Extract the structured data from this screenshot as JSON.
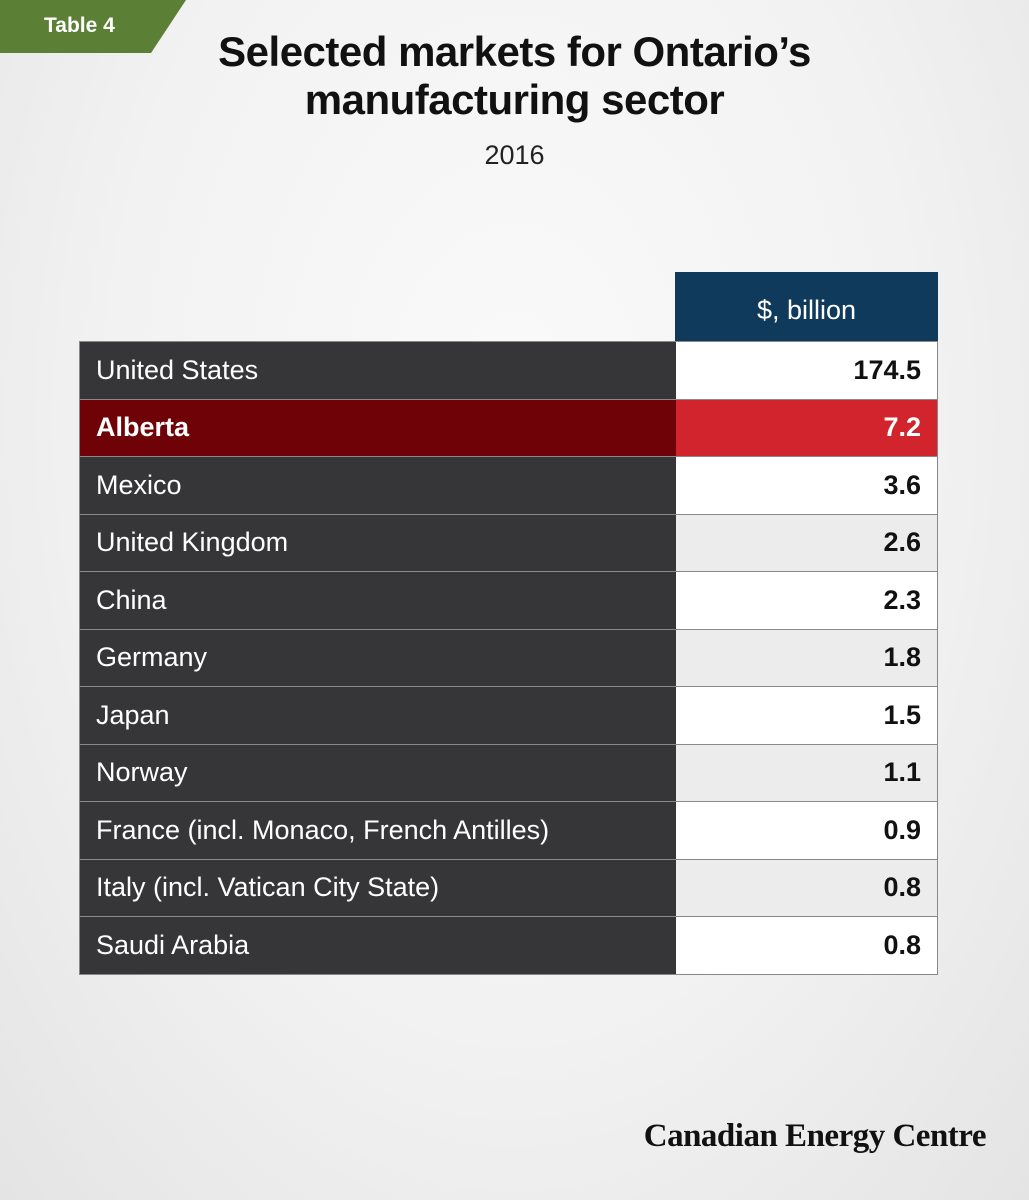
{
  "tag": "Table 4",
  "title_line1": "Selected markets for Ontario’s",
  "title_line2": "manufacturing sector",
  "subtitle": "2016",
  "brand": "Canadian Energy Centre",
  "colors": {
    "tag": "#5c7f36",
    "header": "#0f3a5c",
    "name_cell": "#363638",
    "highlight_name": "#6e0206",
    "highlight_value": "#d1242c"
  },
  "chart_data": {
    "type": "table",
    "title": "Selected markets for Ontario’s manufacturing sector",
    "subtitle": "2016",
    "column_header": "$, billion",
    "highlight": "Alberta",
    "rows": [
      {
        "name": "United States",
        "value": "174.5"
      },
      {
        "name": "Alberta",
        "value": "7.2"
      },
      {
        "name": "Mexico",
        "value": "3.6"
      },
      {
        "name": "United Kingdom",
        "value": "2.6"
      },
      {
        "name": "China",
        "value": "2.3"
      },
      {
        "name": "Germany",
        "value": "1.8"
      },
      {
        "name": "Japan",
        "value": "1.5"
      },
      {
        "name": "Norway",
        "value": "1.1"
      },
      {
        "name": "France (incl. Monaco, French Antilles)",
        "value": "0.9"
      },
      {
        "name": "Italy (incl. Vatican City State)",
        "value": "0.8"
      },
      {
        "name": "Saudi Arabia",
        "value": "0.8"
      }
    ]
  }
}
